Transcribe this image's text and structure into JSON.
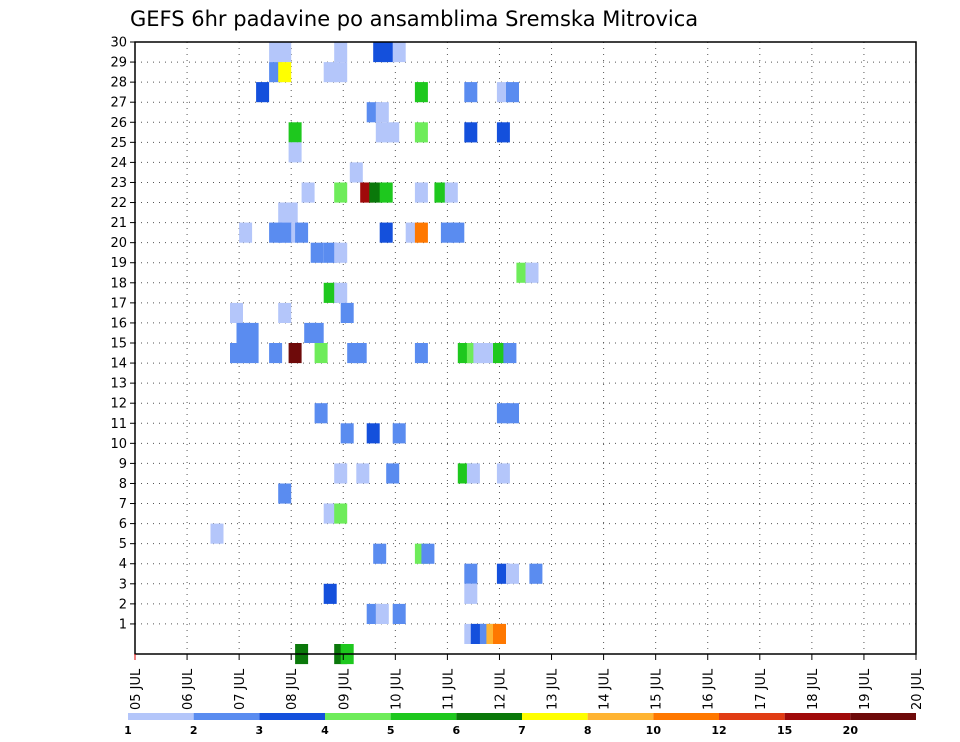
{
  "chart_data": {
    "type": "heatmap",
    "title": "GEFS 6hr padavine po ansamblima Sremska Mitrovica",
    "x_tick_labels": [
      "05 JUL",
      "06 JUL",
      "07 JUL",
      "08 JUL",
      "09 JUL",
      "10 JUL",
      "11 JUL",
      "12 JUL",
      "13 JUL",
      "14 JUL",
      "15 JUL",
      "16 JUL",
      "17 JUL",
      "18 JUL",
      "19 JUL",
      "20 JUL"
    ],
    "y_tick_labels": [
      "1",
      "2",
      "3",
      "4",
      "5",
      "6",
      "7",
      "8",
      "9",
      "10",
      "11",
      "12",
      "13",
      "14",
      "15",
      "16",
      "17",
      "18",
      "19",
      "20",
      "21",
      "22",
      "23",
      "24",
      "25",
      "26",
      "27",
      "28",
      "29",
      "30"
    ],
    "xlim": [
      0,
      60
    ],
    "ylim": [
      0,
      30
    ],
    "grid": true,
    "legend_placement": "bottom",
    "legend": {
      "labels": [
        "1",
        "2",
        "3",
        "4",
        "5",
        "6",
        "7",
        "8",
        "10",
        "12",
        "15",
        "20"
      ],
      "colors": [
        "#b4c6fa",
        "#5a8cf0",
        "#1450dc",
        "#6eec5a",
        "#1ec81e",
        "#0a780a",
        "#ffff00",
        "#ffb432",
        "#ff7800",
        "#e13c14",
        "#a00a0a",
        "#6e0a0a"
      ]
    },
    "cells": [
      {
        "t": 10.8,
        "m": 29.5,
        "c": 0
      },
      {
        "t": 11.5,
        "m": 29.5,
        "c": 0
      },
      {
        "t": 15.8,
        "m": 29.5,
        "c": 0
      },
      {
        "t": 18.8,
        "m": 29.5,
        "c": 2
      },
      {
        "t": 19.5,
        "m": 29.5,
        "c": 2
      },
      {
        "t": 20.3,
        "m": 29.5,
        "c": 0
      },
      {
        "t": 10.8,
        "m": 28.5,
        "c": 1
      },
      {
        "t": 11.5,
        "m": 28.5,
        "c": 6
      },
      {
        "t": 15.0,
        "m": 28.5,
        "c": 0
      },
      {
        "t": 15.8,
        "m": 28.5,
        "c": 0
      },
      {
        "t": 9.8,
        "m": 27.5,
        "c": 2
      },
      {
        "t": 22.0,
        "m": 27.5,
        "c": 4
      },
      {
        "t": 25.8,
        "m": 27.5,
        "c": 1
      },
      {
        "t": 28.3,
        "m": 27.5,
        "c": 0
      },
      {
        "t": 29.0,
        "m": 27.5,
        "c": 1
      },
      {
        "t": 18.3,
        "m": 26.5,
        "c": 1
      },
      {
        "t": 19.0,
        "m": 26.5,
        "c": 0
      },
      {
        "t": 12.3,
        "m": 25.5,
        "c": 4
      },
      {
        "t": 19.0,
        "m": 25.5,
        "c": 0
      },
      {
        "t": 19.8,
        "m": 25.5,
        "c": 0
      },
      {
        "t": 22.0,
        "m": 25.5,
        "c": 3
      },
      {
        "t": 25.8,
        "m": 25.5,
        "c": 2
      },
      {
        "t": 28.3,
        "m": 25.5,
        "c": 2
      },
      {
        "t": 12.3,
        "m": 24.5,
        "c": 0
      },
      {
        "t": 17.0,
        "m": 23.5,
        "c": 0
      },
      {
        "t": 13.3,
        "m": 22.5,
        "c": 0
      },
      {
        "t": 15.8,
        "m": 22.5,
        "c": 3
      },
      {
        "t": 17.8,
        "m": 22.5,
        "c": 10
      },
      {
        "t": 18.5,
        "m": 22.5,
        "c": 5
      },
      {
        "t": 19.3,
        "m": 22.5,
        "c": 4
      },
      {
        "t": 22.0,
        "m": 22.5,
        "c": 0
      },
      {
        "t": 23.5,
        "m": 22.5,
        "c": 4
      },
      {
        "t": 24.3,
        "m": 22.5,
        "c": 0
      },
      {
        "t": 11.5,
        "m": 21.5,
        "c": 0
      },
      {
        "t": 12.0,
        "m": 21.5,
        "c": 0
      },
      {
        "t": 11.5,
        "m": 20.5,
        "c": 0
      },
      {
        "t": 12.0,
        "m": 20.5,
        "c": 0
      },
      {
        "t": 8.5,
        "m": 20.5,
        "c": 0
      },
      {
        "t": 12.8,
        "m": 20.5,
        "c": 1
      },
      {
        "t": 10.8,
        "m": 20.5,
        "c": 1
      },
      {
        "t": 11.5,
        "m": 20.5,
        "c": 1
      },
      {
        "t": 19.3,
        "m": 20.5,
        "c": 2
      },
      {
        "t": 21.3,
        "m": 20.5,
        "c": 0
      },
      {
        "t": 22.0,
        "m": 20.5,
        "c": 8
      },
      {
        "t": 24.0,
        "m": 20.5,
        "c": 1
      },
      {
        "t": 24.8,
        "m": 20.5,
        "c": 1
      },
      {
        "t": 14.0,
        "m": 19.5,
        "c": 1
      },
      {
        "t": 15.0,
        "m": 19.5,
        "c": 1
      },
      {
        "t": 15.8,
        "m": 19.5,
        "c": 0
      },
      {
        "t": 29.8,
        "m": 18.5,
        "c": 3
      },
      {
        "t": 30.5,
        "m": 18.5,
        "c": 0
      },
      {
        "t": 15.0,
        "m": 17.5,
        "c": 4
      },
      {
        "t": 15.8,
        "m": 17.5,
        "c": 0
      },
      {
        "t": 7.8,
        "m": 16.5,
        "c": 0
      },
      {
        "t": 11.5,
        "m": 16.5,
        "c": 0
      },
      {
        "t": 16.3,
        "m": 16.5,
        "c": 1
      },
      {
        "t": 8.3,
        "m": 15.5,
        "c": 1
      },
      {
        "t": 9.0,
        "m": 15.5,
        "c": 1
      },
      {
        "t": 13.5,
        "m": 15.5,
        "c": 1
      },
      {
        "t": 14.0,
        "m": 15.5,
        "c": 1
      },
      {
        "t": 7.8,
        "m": 14.5,
        "c": 1
      },
      {
        "t": 8.3,
        "m": 14.5,
        "c": 1
      },
      {
        "t": 9.0,
        "m": 14.5,
        "c": 1
      },
      {
        "t": 10.8,
        "m": 14.5,
        "c": 1
      },
      {
        "t": 12.3,
        "m": 14.5,
        "c": 11
      },
      {
        "t": 14.3,
        "m": 14.5,
        "c": 3
      },
      {
        "t": 16.8,
        "m": 14.5,
        "c": 1
      },
      {
        "t": 17.3,
        "m": 14.5,
        "c": 1
      },
      {
        "t": 22.0,
        "m": 14.5,
        "c": 1
      },
      {
        "t": 25.3,
        "m": 14.5,
        "c": 4
      },
      {
        "t": 26.0,
        "m": 14.5,
        "c": 3
      },
      {
        "t": 26.5,
        "m": 14.5,
        "c": 0
      },
      {
        "t": 27.0,
        "m": 14.5,
        "c": 0
      },
      {
        "t": 28.0,
        "m": 14.5,
        "c": 4
      },
      {
        "t": 28.8,
        "m": 14.5,
        "c": 1
      },
      {
        "t": 14.3,
        "m": 11.5,
        "c": 1
      },
      {
        "t": 16.3,
        "m": 10.5,
        "c": 1
      },
      {
        "t": 18.3,
        "m": 10.5,
        "c": 2
      },
      {
        "t": 20.3,
        "m": 10.5,
        "c": 1
      },
      {
        "t": 28.3,
        "m": 11.5,
        "c": 1
      },
      {
        "t": 29.0,
        "m": 11.5,
        "c": 1
      },
      {
        "t": 15.8,
        "m": 8.5,
        "c": 0
      },
      {
        "t": 17.5,
        "m": 8.5,
        "c": 0
      },
      {
        "t": 19.8,
        "m": 8.5,
        "c": 1
      },
      {
        "t": 25.3,
        "m": 8.5,
        "c": 4
      },
      {
        "t": 26.0,
        "m": 8.5,
        "c": 0
      },
      {
        "t": 28.3,
        "m": 8.5,
        "c": 0
      },
      {
        "t": 11.5,
        "m": 7.5,
        "c": 1
      },
      {
        "t": 15.0,
        "m": 6.5,
        "c": 0
      },
      {
        "t": 15.8,
        "m": 6.5,
        "c": 3
      },
      {
        "t": 6.3,
        "m": 5.5,
        "c": 0
      },
      {
        "t": 18.8,
        "m": 4.5,
        "c": 1
      },
      {
        "t": 22.0,
        "m": 4.5,
        "c": 3
      },
      {
        "t": 22.5,
        "m": 4.5,
        "c": 1
      },
      {
        "t": 25.8,
        "m": 3.5,
        "c": 1
      },
      {
        "t": 28.3,
        "m": 3.5,
        "c": 2
      },
      {
        "t": 29.0,
        "m": 3.5,
        "c": 0
      },
      {
        "t": 30.8,
        "m": 3.5,
        "c": 1
      },
      {
        "t": 15.0,
        "m": 2.5,
        "c": 2
      },
      {
        "t": 25.8,
        "m": 2.5,
        "c": 0
      },
      {
        "t": 18.3,
        "m": 1.5,
        "c": 1
      },
      {
        "t": 19.0,
        "m": 1.5,
        "c": 0
      },
      {
        "t": 20.3,
        "m": 1.5,
        "c": 1
      },
      {
        "t": 25.8,
        "m": 0.5,
        "c": 0
      },
      {
        "t": 26.3,
        "m": 0.5,
        "c": 2
      },
      {
        "t": 27.0,
        "m": 0.5,
        "c": 1
      },
      {
        "t": 27.5,
        "m": 0.5,
        "c": 7
      },
      {
        "t": 28.0,
        "m": 0.5,
        "c": 8
      },
      {
        "t": 12.8,
        "m": -0.5,
        "c": 5
      },
      {
        "t": 15.8,
        "m": -0.5,
        "c": 5
      },
      {
        "t": 16.3,
        "m": -0.5,
        "c": 4
      }
    ]
  }
}
